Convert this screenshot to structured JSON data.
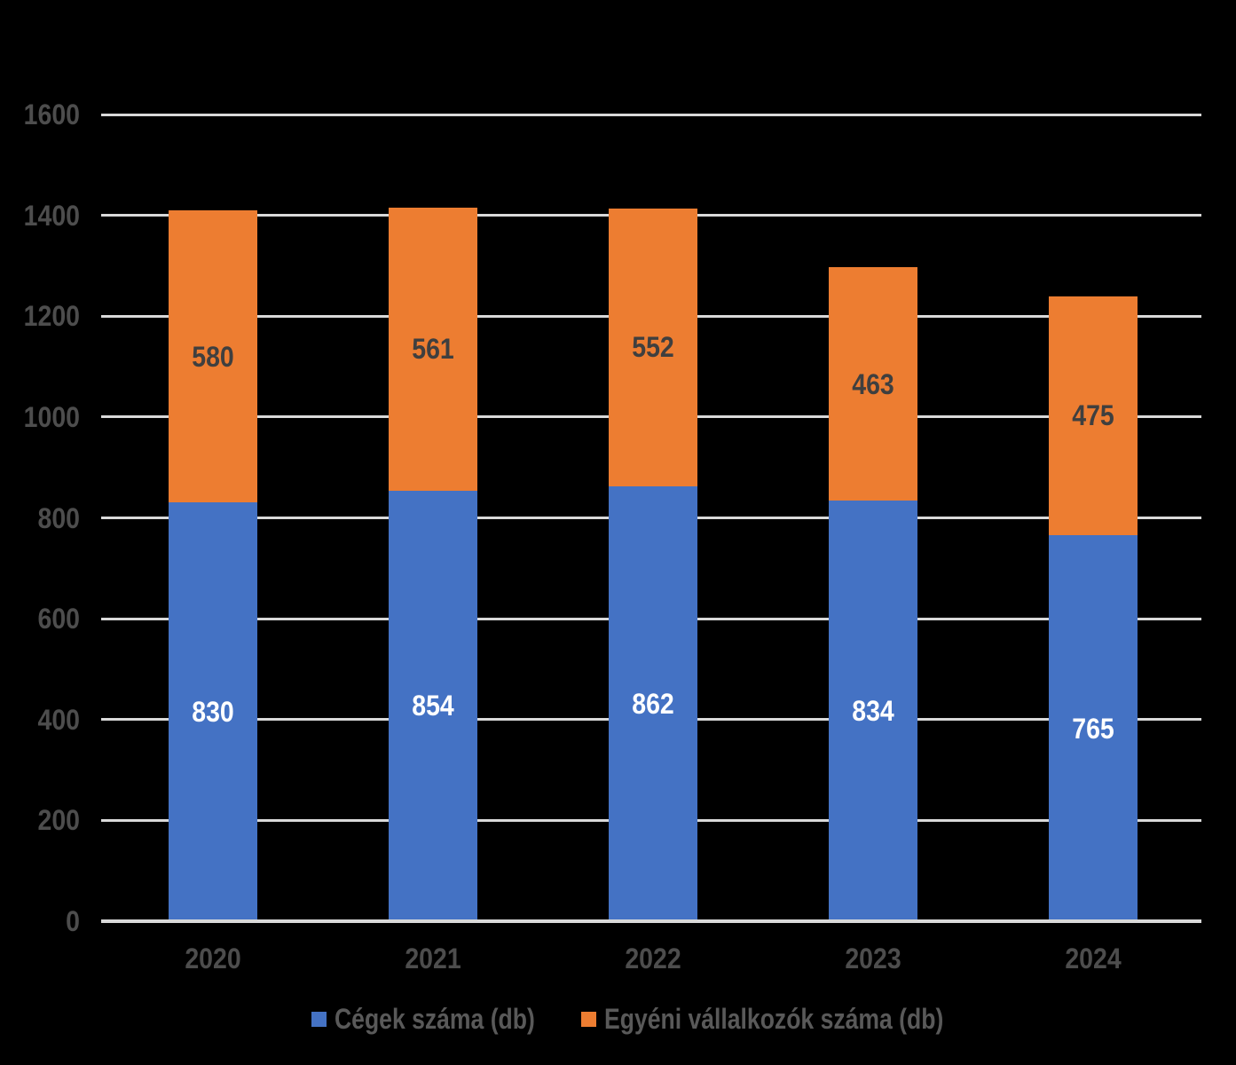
{
  "background_color": "#000000",
  "chart_data": {
    "type": "bar",
    "stacked": true,
    "title": "",
    "xlabel": "",
    "ylabel": "",
    "categories": [
      "2020",
      "2021",
      "2022",
      "2023",
      "2024"
    ],
    "series": [
      {
        "name": "Cégek száma (db)",
        "color": "#4472C4",
        "label_color": "#FFFFFF",
        "values": [
          830,
          854,
          862,
          834,
          765
        ]
      },
      {
        "name": "Egyéni vállalkozók száma (db)",
        "color": "#ED7D31",
        "label_color": "#3F3F3F",
        "values": [
          580,
          561,
          552,
          463,
          475
        ]
      }
    ],
    "ylim": [
      0,
      1600
    ],
    "yticks": [
      0,
      200,
      400,
      600,
      800,
      1000,
      1200,
      1400,
      1600
    ],
    "grid": true,
    "legend_position": "bottom",
    "gridline_color": "#D9D9D9",
    "axis_line_color": "#D9D9D9",
    "tick_label_color": "#4D4D4D",
    "legend_label_color": "#595959"
  }
}
